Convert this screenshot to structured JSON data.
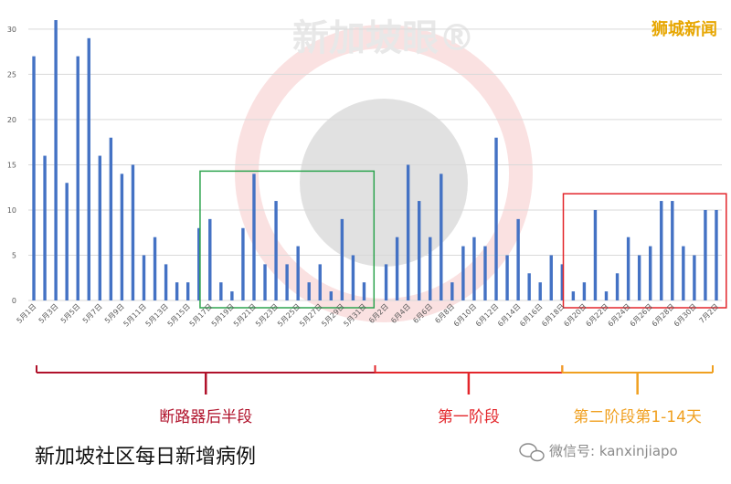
{
  "chart_data": {
    "type": "bar",
    "categories": [
      "5月1日",
      "5月2日",
      "5月3日",
      "5月4日",
      "5月5日",
      "5月6日",
      "5月7日",
      "5月8日",
      "5月9日",
      "5月10日",
      "5月11日",
      "5月12日",
      "5月13日",
      "5月14日",
      "5月15日",
      "5月16日",
      "5月17日",
      "5月18日",
      "5月19日",
      "5月20日",
      "5月21日",
      "5月22日",
      "5月23日",
      "5月24日",
      "5月25日",
      "5月26日",
      "5月27日",
      "5月28日",
      "5月29日",
      "5月30日",
      "5月31日",
      "6月1日",
      "6月2日",
      "6月3日",
      "6月4日",
      "6月5日",
      "6月6日",
      "6月7日",
      "6月8日",
      "6月9日",
      "6月10日",
      "6月11日",
      "6月12日",
      "6月13日",
      "6月14日",
      "6月15日",
      "6月16日",
      "6月17日",
      "6月18日",
      "6月19日",
      "6月20日",
      "6月21日",
      "6月22日",
      "6月23日",
      "6月24日",
      "6月25日",
      "6月26日",
      "6月27日",
      "6月28日",
      "6月29日",
      "6月30日",
      "7月1日",
      "7月2日"
    ],
    "values": [
      27,
      16,
      31,
      13,
      27,
      29,
      16,
      18,
      14,
      15,
      5,
      7,
      4,
      2,
      2,
      8,
      9,
      2,
      1,
      8,
      14,
      4,
      11,
      4,
      6,
      2,
      4,
      1,
      9,
      5,
      2,
      0,
      4,
      7,
      15,
      11,
      7,
      14,
      2,
      6,
      7,
      6,
      18,
      5,
      9,
      3,
      2,
      5,
      4,
      1,
      2,
      10,
      1,
      3,
      7,
      5,
      6,
      11,
      11,
      6,
      5,
      10,
      10
    ],
    "ylim": [
      0,
      31
    ],
    "yticks": [
      0,
      5,
      10,
      15,
      20,
      25,
      30
    ],
    "grid": true,
    "title": "新加坡社区每日新增病例",
    "bar_color": "#4472c4"
  },
  "phases": [
    {
      "label": "断路器后半段",
      "color": "#b0122b",
      "start": "5月1日",
      "end": "6月1日"
    },
    {
      "label": "第一阶段",
      "color": "#e3262b",
      "start": "6月1日",
      "end": "6月18日"
    },
    {
      "label": "第二阶段第1-14天",
      "color": "#f0a020",
      "start": "6月18日",
      "end": "7月2日"
    }
  ],
  "highlight_boxes": [
    {
      "color": "#2ea44f",
      "start": "5月17日",
      "end": "5月31日",
      "ymax": 14.3
    },
    {
      "color": "#e3262b",
      "start": "6月19日",
      "end": "7月2日",
      "ymax": 11.8
    }
  ],
  "watermark": "新加坡眼®",
  "brand": "狮城新闻",
  "wechat": "微信号: kanxinjiapo"
}
